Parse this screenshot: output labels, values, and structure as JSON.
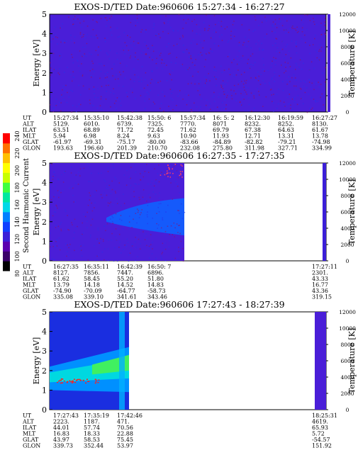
{
  "colorbar": {
    "title": "Second Harmonic Current",
    "ticks": [
      "80",
      "100",
      "120",
      "140",
      "160",
      "180",
      "200",
      "220",
      "240"
    ],
    "colors": [
      "#000000",
      "#3a006a",
      "#5a00b0",
      "#3b1fd8",
      "#1040ff",
      "#0080ff",
      "#00d8e8",
      "#00e8a0",
      "#40ff40",
      "#c8ff00",
      "#ffff00",
      "#ffc000",
      "#ff7000",
      "#ff0000"
    ]
  },
  "panels": [
    {
      "title": "EXOS-D/TED   Date:960606  15:27:34 - 16:27:27",
      "ylabel": "Energy [eV]",
      "y2label": "Temperature [K]",
      "yticks": [
        "0",
        "1",
        "2",
        "3",
        "4",
        "5"
      ],
      "y2ticks": [
        "0",
        "2000",
        "4000",
        "6000",
        "8000",
        "10000",
        "12000"
      ],
      "orbit_rows": [
        {
          "label": "UT",
          "values": [
            "15:27:34",
            "15:35:10",
            "15:42:38",
            "15:50: 6",
            "15:57:34",
            "16: 5: 2",
            "16:12:30",
            "16:19:59",
            "16:27:27"
          ]
        },
        {
          "label": "ALT",
          "values": [
            "5129.",
            "6010.",
            "6739.",
            "7325.",
            "7770.",
            "8071",
            "8232.",
            "8252.",
            "8130."
          ]
        },
        {
          "label": "ILAT",
          "values": [
            "63.51",
            "68.89",
            "71.72",
            "72.45",
            "71.62",
            "69.79",
            "67.38",
            "64.63",
            "61.67"
          ]
        },
        {
          "label": "MLT",
          "values": [
            "5.94",
            "6.98",
            "8.24",
            "9.63",
            "10.90",
            "11.93",
            "12.71",
            "13.31",
            "13.78"
          ]
        },
        {
          "label": "GLAT",
          "values": [
            "-61.97",
            "-69.31",
            "-75.17",
            "-80.00",
            "-83.66",
            "-84.89",
            "-82.82",
            "-79.21",
            "-74.98"
          ]
        },
        {
          "label": "GLON",
          "values": [
            "193.63",
            "196.60",
            "201.39",
            "210.70",
            "232.08",
            "275.80",
            "311.98",
            "327.71",
            "334.99"
          ]
        }
      ]
    },
    {
      "title": "EXOS-D/TED   Date:960606  16:27:35 - 17:27:35",
      "ylabel": "Energy [eV]",
      "y2label": "Temperature [K]",
      "yticks": [
        "0",
        "1",
        "2",
        "3",
        "4",
        "5"
      ],
      "y2ticks": [
        "0",
        "2000",
        "4000",
        "6000",
        "8000",
        "10000",
        "12000"
      ],
      "orbit_rows": [
        {
          "label": "UT",
          "values": [
            "16:27:35",
            "16:35:11",
            "16:42:39",
            "16:50: 7",
            "17:27:11"
          ]
        },
        {
          "label": "ALT",
          "values": [
            "8127.",
            "7856.",
            "7447.",
            "6896.",
            "2301."
          ]
        },
        {
          "label": "ILAT",
          "values": [
            "61.62",
            "58.45",
            "55.20",
            "51.80",
            "43.33"
          ]
        },
        {
          "label": "MLT",
          "values": [
            "13.79",
            "14.18",
            "14.52",
            "14.83",
            "16.77"
          ]
        },
        {
          "label": "GLAT",
          "values": [
            "-74.90",
            "-70.09",
            "-64.77",
            "-58.73",
            "43.36"
          ]
        },
        {
          "label": "GLON",
          "values": [
            "335.08",
            "339.10",
            "341.61",
            "343.46",
            "319.15"
          ]
        }
      ]
    },
    {
      "title": "EXOS-D/TED   Date:960606  17:27:43 - 18:27:39",
      "ylabel": "Energy [eV]",
      "y2label": "Temperature [K]",
      "yticks": [
        "0",
        "1",
        "2",
        "3",
        "4",
        "5"
      ],
      "y2ticks": [
        "0",
        "2000",
        "4000",
        "6000",
        "8000",
        "10000",
        "12000"
      ],
      "orbit_rows": [
        {
          "label": "UT",
          "values": [
            "17:27:43",
            "17:35:19",
            "17:42:46",
            "18:25:31"
          ]
        },
        {
          "label": "ALT",
          "values": [
            "2223.",
            "1187.",
            "471.",
            "4619."
          ]
        },
        {
          "label": "ILAT",
          "values": [
            "44.01",
            "57.74",
            "70.56",
            "65.93"
          ]
        },
        {
          "label": "MLT",
          "values": [
            "16.83",
            "18.33",
            "22.88",
            "5.72"
          ]
        },
        {
          "label": "GLAT",
          "values": [
            "43.97",
            "58.53",
            "75.45",
            "-54.57"
          ]
        },
        {
          "label": "GLON",
          "values": [
            "339.73",
            "352.44",
            "53.97",
            "151.92"
          ]
        }
      ]
    }
  ],
  "chart_data": [
    {
      "type": "heatmap",
      "title": "EXOS-D/TED   Date:960606  15:27:34 - 16:27:27",
      "ylabel": "Energy [eV]",
      "y2label": "Temperature [K]",
      "ylim": [
        0,
        5
      ],
      "y2lim": [
        0,
        12000
      ],
      "x_time_range": [
        "15:27:34",
        "16:27:27"
      ],
      "coverage": [
        {
          "from_frac": 0.0,
          "to_frac": 1.0,
          "state": "uniform background ~100-130"
        }
      ]
    },
    {
      "type": "heatmap",
      "title": "EXOS-D/TED   Date:960606  16:27:35 - 17:27:35",
      "ylabel": "Energy [eV]",
      "y2label": "Temperature [K]",
      "ylim": [
        0,
        5
      ],
      "y2lim": [
        0,
        12000
      ],
      "x_time_range": [
        "16:27:35",
        "17:27:35"
      ],
      "coverage": [
        {
          "from_frac": 0.0,
          "to_frac": 0.53,
          "state": "data, enhancement near 1.5-3 eV"
        },
        {
          "from_frac": 0.53,
          "to_frac": 1.0,
          "state": "no data"
        }
      ]
    },
    {
      "type": "heatmap",
      "title": "EXOS-D/TED   Date:960606  17:27:43 - 18:27:39",
      "ylabel": "Energy [eV]",
      "y2label": "Temperature [K]",
      "ylim": [
        0,
        5
      ],
      "y2lim": [
        0,
        12000
      ],
      "x_time_range": [
        "17:27:43",
        "18:27:39"
      ],
      "coverage": [
        {
          "from_frac": 0.0,
          "to_frac": 0.34,
          "state": "data, strong band 1-3 eV"
        },
        {
          "from_frac": 0.34,
          "to_frac": 1.0,
          "state": "no data"
        }
      ]
    }
  ]
}
